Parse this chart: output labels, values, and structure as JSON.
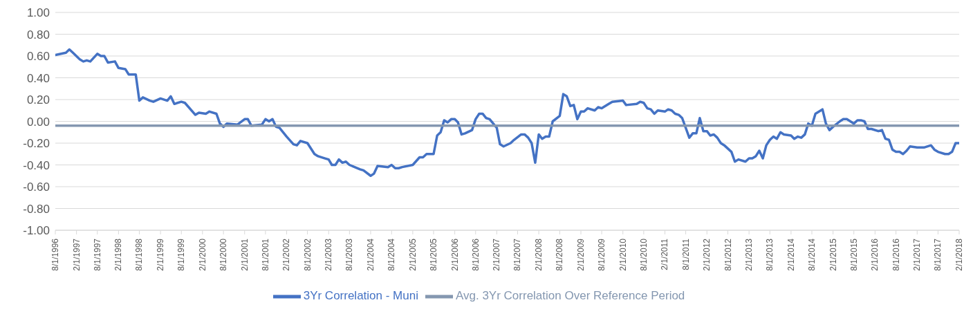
{
  "chart_data": {
    "type": "line",
    "legend": "bottom",
    "grid": "y",
    "marker": "none",
    "line_style": "solid",
    "ylim": [
      -1,
      1
    ],
    "yticks": [
      {
        "value": -1,
        "label": "-1.00"
      },
      {
        "value": -0.8,
        "label": "-0.80"
      },
      {
        "value": -0.6,
        "label": "-0.60"
      },
      {
        "value": -0.4,
        "label": "-0.40"
      },
      {
        "value": -0.2,
        "label": "-0.20"
      },
      {
        "value": 0,
        "label": "0.00"
      },
      {
        "value": 0.2,
        "label": "0.20"
      },
      {
        "value": 0.4,
        "label": "0.40"
      },
      {
        "value": 0.6,
        "label": "0.60"
      },
      {
        "value": 0.8,
        "label": "0.80"
      },
      {
        "value": 1,
        "label": "1.00"
      }
    ],
    "xlim": [
      "1996-08",
      "2018-02"
    ],
    "xticks": [
      {
        "value": "1996-08",
        "label": "8/1/1996"
      },
      {
        "value": "1997-02",
        "label": "2/1/1997"
      },
      {
        "value": "1997-08",
        "label": "8/1/1997"
      },
      {
        "value": "1998-02",
        "label": "2/1/1998"
      },
      {
        "value": "1998-08",
        "label": "8/1/1998"
      },
      {
        "value": "1999-02",
        "label": "2/1/1999"
      },
      {
        "value": "1999-08",
        "label": "8/1/1999"
      },
      {
        "value": "2000-02",
        "label": "2/1/2000"
      },
      {
        "value": "2000-08",
        "label": "8/1/2000"
      },
      {
        "value": "2001-02",
        "label": "2/1/2001"
      },
      {
        "value": "2001-08",
        "label": "8/1/2001"
      },
      {
        "value": "2002-02",
        "label": "2/1/2002"
      },
      {
        "value": "2002-08",
        "label": "8/1/2002"
      },
      {
        "value": "2003-02",
        "label": "2/1/2003"
      },
      {
        "value": "2003-08",
        "label": "8/1/2003"
      },
      {
        "value": "2004-02",
        "label": "2/1/2004"
      },
      {
        "value": "2004-08",
        "label": "8/1/2004"
      },
      {
        "value": "2005-02",
        "label": "2/1/2005"
      },
      {
        "value": "2005-08",
        "label": "8/1/2005"
      },
      {
        "value": "2006-02",
        "label": "2/1/2006"
      },
      {
        "value": "2006-08",
        "label": "8/1/2006"
      },
      {
        "value": "2007-02",
        "label": "2/1/2007"
      },
      {
        "value": "2007-08",
        "label": "8/1/2007"
      },
      {
        "value": "2008-02",
        "label": "2/1/2008"
      },
      {
        "value": "2008-08",
        "label": "8/1/2008"
      },
      {
        "value": "2009-02",
        "label": "2/1/2009"
      },
      {
        "value": "2009-08",
        "label": "8/1/2009"
      },
      {
        "value": "2010-02",
        "label": "2/1/2010"
      },
      {
        "value": "2010-08",
        "label": "8/1/2010"
      },
      {
        "value": "2011-02",
        "label": "2/1/2011"
      },
      {
        "value": "2011-08",
        "label": "8/1/2011"
      },
      {
        "value": "2012-02",
        "label": "2/1/2012"
      },
      {
        "value": "2012-08",
        "label": "8/1/2012"
      },
      {
        "value": "2013-02",
        "label": "2/1/2013"
      },
      {
        "value": "2013-08",
        "label": "8/1/2013"
      },
      {
        "value": "2014-02",
        "label": "2/1/2014"
      },
      {
        "value": "2014-08",
        "label": "8/1/2014"
      },
      {
        "value": "2015-02",
        "label": "2/1/2015"
      },
      {
        "value": "2015-08",
        "label": "8/1/2015"
      },
      {
        "value": "2016-02",
        "label": "2/1/2016"
      },
      {
        "value": "2016-08",
        "label": "8/1/2016"
      },
      {
        "value": "2017-02",
        "label": "2/1/2017"
      },
      {
        "value": "2017-08",
        "label": "8/1/2017"
      },
      {
        "value": "2018-02",
        "label": "2/1/2018"
      }
    ],
    "series": [
      {
        "name": "3Yr Correlation - Muni",
        "color": "#4472c4",
        "x": [
          "1996-08",
          "1996-11",
          "1996-12",
          "1997-01",
          "1997-03",
          "1997-04",
          "1997-05",
          "1997-06",
          "1997-08",
          "1997-09",
          "1997-10",
          "1997-11",
          "1998-01",
          "1998-02",
          "1998-04",
          "1998-05",
          "1998-07",
          "1998-08",
          "1998-09",
          "1998-11",
          "1998-12",
          "1999-02",
          "1999-04",
          "1999-05",
          "1999-06",
          "1999-08",
          "1999-09",
          "1999-12",
          "2000-01",
          "2000-03",
          "2000-04",
          "2000-06",
          "2000-07",
          "2000-08",
          "2000-09",
          "2000-12",
          "2001-02",
          "2001-03",
          "2001-04",
          "2001-07",
          "2001-08",
          "2001-09",
          "2001-10",
          "2001-11",
          "2001-12",
          "2002-02",
          "2002-04",
          "2002-05",
          "2002-06",
          "2002-08",
          "2002-10",
          "2002-11",
          "2003-01",
          "2003-02",
          "2003-03",
          "2003-04",
          "2003-05",
          "2003-06",
          "2003-07",
          "2003-08",
          "2003-11",
          "2003-12",
          "2004-02",
          "2004-03",
          "2004-04",
          "2004-07",
          "2004-08",
          "2004-09",
          "2004-10",
          "2004-11",
          "2005-02",
          "2005-04",
          "2005-05",
          "2005-06",
          "2005-08",
          "2005-09",
          "2005-10",
          "2005-11",
          "2005-12",
          "2006-01",
          "2006-02",
          "2006-03",
          "2006-04",
          "2006-05",
          "2006-07",
          "2006-08",
          "2006-09",
          "2006-10",
          "2006-11",
          "2006-12",
          "2007-02",
          "2007-03",
          "2007-04",
          "2007-06",
          "2007-07",
          "2007-09",
          "2007-10",
          "2007-11",
          "2007-12",
          "2008-01",
          "2008-02",
          "2008-03",
          "2008-04",
          "2008-05",
          "2008-06",
          "2008-08",
          "2008-09",
          "2008-10",
          "2008-11",
          "2008-12",
          "2009-01",
          "2009-02",
          "2009-03",
          "2009-04",
          "2009-06",
          "2009-07",
          "2009-08",
          "2009-10",
          "2009-11",
          "2010-02",
          "2010-03",
          "2010-06",
          "2010-07",
          "2010-08",
          "2010-09",
          "2010-10",
          "2010-11",
          "2010-12",
          "2011-02",
          "2011-03",
          "2011-04",
          "2011-05",
          "2011-06",
          "2011-07",
          "2011-09",
          "2011-10",
          "2011-11",
          "2011-12",
          "2012-01",
          "2012-02",
          "2012-03",
          "2012-04",
          "2012-05",
          "2012-06",
          "2012-07",
          "2012-09",
          "2012-10",
          "2012-11",
          "2013-01",
          "2013-02",
          "2013-03",
          "2013-04",
          "2013-05",
          "2013-06",
          "2013-07",
          "2013-08",
          "2013-09",
          "2013-10",
          "2013-11",
          "2013-12",
          "2014-02",
          "2014-03",
          "2014-04",
          "2014-05",
          "2014-06",
          "2014-07",
          "2014-08",
          "2014-09",
          "2014-11",
          "2014-12",
          "2015-01",
          "2015-02",
          "2015-04",
          "2015-05",
          "2015-06",
          "2015-08",
          "2015-09",
          "2015-10",
          "2015-11",
          "2015-12",
          "2016-01",
          "2016-03",
          "2016-04",
          "2016-05",
          "2016-06",
          "2016-07",
          "2016-08",
          "2016-09",
          "2016-10",
          "2016-11",
          "2016-12",
          "2017-02",
          "2017-04",
          "2017-06",
          "2017-07",
          "2017-08",
          "2017-10",
          "2017-11",
          "2017-12",
          "2018-01",
          "2018-02"
        ],
        "values": [
          0.61,
          0.63,
          0.66,
          0.63,
          0.57,
          0.55,
          0.56,
          0.55,
          0.62,
          0.6,
          0.6,
          0.54,
          0.55,
          0.49,
          0.48,
          0.43,
          0.43,
          0.19,
          0.22,
          0.19,
          0.18,
          0.21,
          0.19,
          0.23,
          0.16,
          0.18,
          0.17,
          0.06,
          0.08,
          0.07,
          0.09,
          0.07,
          -0.02,
          -0.05,
          -0.02,
          -0.03,
          0.02,
          0.02,
          -0.04,
          -0.03,
          0.02,
          0.0,
          0.02,
          -0.05,
          -0.06,
          -0.14,
          -0.21,
          -0.22,
          -0.18,
          -0.2,
          -0.3,
          -0.32,
          -0.34,
          -0.35,
          -0.4,
          -0.4,
          -0.35,
          -0.38,
          -0.37,
          -0.4,
          -0.44,
          -0.45,
          -0.5,
          -0.48,
          -0.41,
          -0.42,
          -0.4,
          -0.43,
          -0.43,
          -0.42,
          -0.4,
          -0.33,
          -0.33,
          -0.3,
          -0.3,
          -0.13,
          -0.1,
          0.01,
          -0.01,
          0.02,
          0.02,
          -0.01,
          -0.12,
          -0.11,
          -0.08,
          0.02,
          0.07,
          0.07,
          0.03,
          0.02,
          -0.06,
          -0.21,
          -0.23,
          -0.2,
          -0.17,
          -0.12,
          -0.12,
          -0.15,
          -0.2,
          -0.38,
          -0.12,
          -0.16,
          -0.14,
          -0.14,
          0.0,
          0.05,
          0.25,
          0.23,
          0.14,
          0.15,
          0.02,
          0.09,
          0.09,
          0.12,
          0.1,
          0.13,
          0.12,
          0.16,
          0.18,
          0.19,
          0.15,
          0.16,
          0.18,
          0.17,
          0.12,
          0.11,
          0.07,
          0.1,
          0.09,
          0.11,
          0.1,
          0.07,
          0.06,
          0.03,
          -0.15,
          -0.11,
          -0.11,
          0.03,
          -0.09,
          -0.09,
          -0.13,
          -0.12,
          -0.15,
          -0.2,
          -0.22,
          -0.28,
          -0.37,
          -0.35,
          -0.37,
          -0.34,
          -0.34,
          -0.32,
          -0.27,
          -0.34,
          -0.22,
          -0.17,
          -0.14,
          -0.16,
          -0.1,
          -0.12,
          -0.13,
          -0.16,
          -0.14,
          -0.15,
          -0.12,
          -0.02,
          -0.04,
          0.07,
          0.11,
          -0.02,
          -0.08,
          -0.05,
          0.0,
          0.02,
          0.02,
          -0.02,
          0.01,
          0.01,
          0.0,
          -0.07,
          -0.07,
          -0.09,
          -0.08,
          -0.16,
          -0.17,
          -0.26,
          -0.28,
          -0.28,
          -0.3,
          -0.27,
          -0.23,
          -0.24,
          -0.24,
          -0.22,
          -0.26,
          -0.28,
          -0.3,
          -0.3,
          -0.28,
          -0.2,
          -0.2
        ]
      },
      {
        "name": "Avg. 3Yr Correlation Over Reference Period",
        "color": "#8497b0",
        "x": [
          "1996-08",
          "2018-02"
        ],
        "values": [
          -0.04,
          -0.04
        ]
      }
    ]
  }
}
